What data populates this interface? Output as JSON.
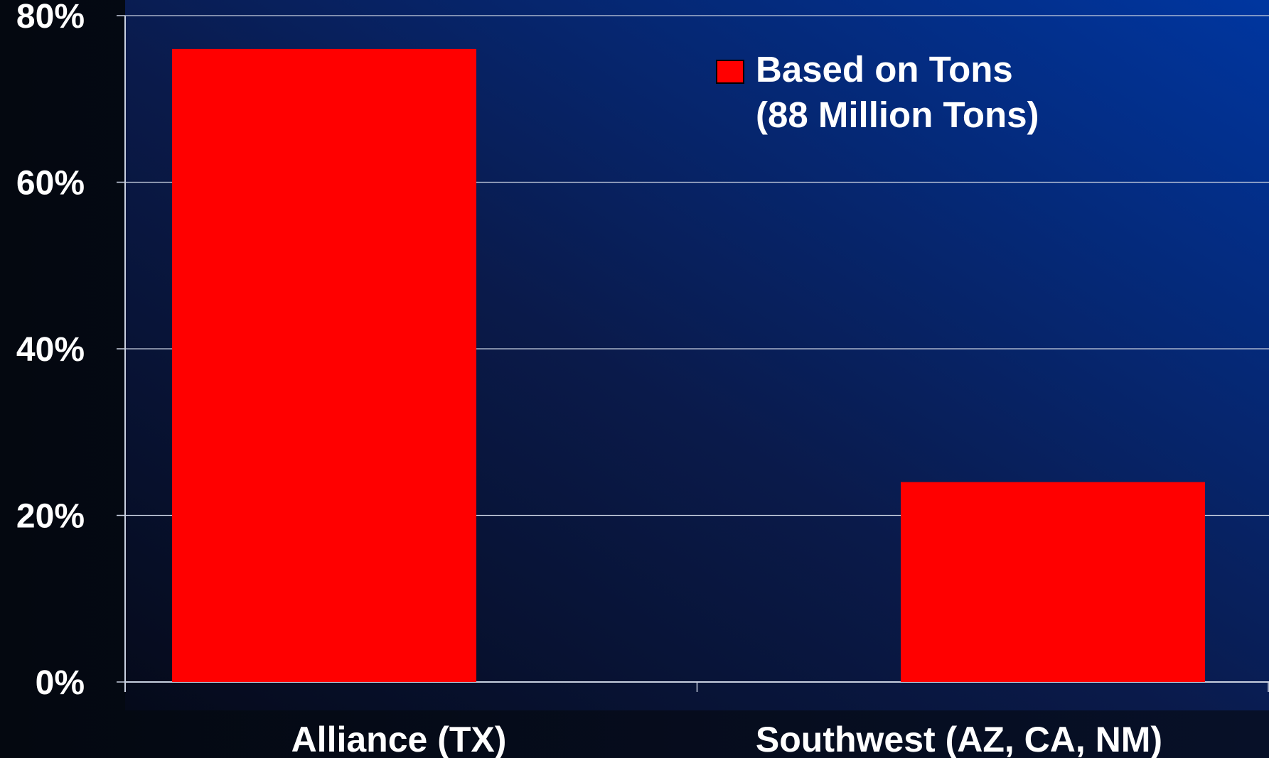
{
  "chart_data": {
    "type": "bar",
    "categories": [
      "Alliance (TX)",
      "Southwest (AZ, CA, NM)"
    ],
    "series": [
      {
        "name": "Based on Tons\n(88  Million Tons)",
        "color": "#ff0000",
        "values": [
          76,
          24
        ]
      }
    ],
    "ylim": [
      0,
      80
    ],
    "yticks": [
      {
        "value": 0,
        "label": "0%"
      },
      {
        "value": 20,
        "label": "20%"
      },
      {
        "value": 40,
        "label": "40%"
      },
      {
        "value": 60,
        "label": "60%"
      },
      {
        "value": 80,
        "label": "80%"
      }
    ],
    "grid": true,
    "legend": "top-right"
  }
}
